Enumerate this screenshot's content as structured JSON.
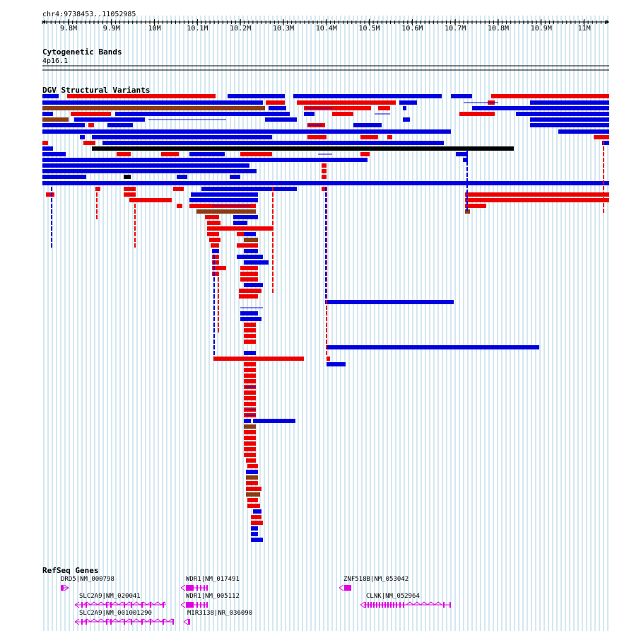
{
  "locus": "chr4:9738453..11052985",
  "ruler": {
    "ticks": [
      "9.8M",
      "9.9M",
      "10M",
      "10.1M",
      "10.2M",
      "10.3M",
      "10.4M",
      "10.5M",
      "10.6M",
      "10.7M",
      "10.8M",
      "10.9M",
      "11M"
    ]
  },
  "tracks": {
    "cytoband_title": "Cytogenetic Bands",
    "cytoband_label": "4p16.1",
    "dgv_title": "DGV Structural Variants",
    "refseq_title": "RefSeq Genes"
  },
  "colors": {
    "gain": "#0000e0",
    "loss": "#ee0000",
    "gain_loss": "#8b3a12",
    "complex": "#000000",
    "gene": "#e000e0",
    "grid": "#a9cfe0"
  },
  "genes": [
    {
      "label": "DRD5|NM_000798"
    },
    {
      "label": "SLC2A9|NM_020041"
    },
    {
      "label": "SLC2A9|NM_001001290"
    },
    {
      "label": "WDR1|NM_017491"
    },
    {
      "label": "WDR1|NM_005112"
    },
    {
      "label": "MIR3138|NR_036090"
    },
    {
      "label": "ZNF518B|NM_053042"
    },
    {
      "label": "CLNK|NM_052964"
    }
  ]
}
